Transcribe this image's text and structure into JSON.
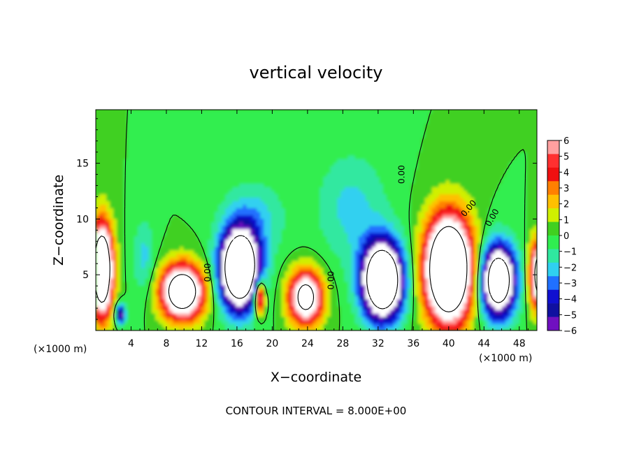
{
  "chart_data": {
    "type": "heatmap",
    "title": "vertical velocity",
    "xlabel": "X−coordinate",
    "ylabel": "Z−coordinate",
    "x_unit": "(×1000 m)",
    "x_unit_right": "(×1000 m)",
    "footer": "CONTOUR INTERVAL = 8.000E+00",
    "xlim": [
      0,
      50
    ],
    "ylim": [
      0,
      19.8
    ],
    "x_ticks": [
      4,
      8,
      12,
      16,
      20,
      24,
      28,
      32,
      36,
      40,
      44,
      48
    ],
    "y_ticks": [
      5,
      10,
      15
    ],
    "colorbar": {
      "range": [
        -6,
        6
      ],
      "ticks": [
        "6",
        "5",
        "4",
        "3",
        "2",
        "1",
        "0",
        "−1",
        "−2",
        "−3",
        "−4",
        "−5",
        "−6"
      ],
      "colors": [
        "#ffa0a0",
        "#ff3030",
        "#f01010",
        "#ff8000",
        "#ffc000",
        "#d0f000",
        "#40d020",
        "#30ee50",
        "#30e8a0",
        "#30d0f0",
        "#2070ff",
        "#1010d0",
        "#1010a0",
        "#7010c0"
      ]
    },
    "contour_labels": [
      "0.00",
      "0.00",
      "0.00",
      "0.00",
      "0.00"
    ],
    "background_value": 0,
    "features": [
      {
        "name": "updraft",
        "x": 0.7,
        "z": 5.5,
        "sx": 1.2,
        "sz": 4.0,
        "value": 14
      },
      {
        "name": "downdraft",
        "x": 2.8,
        "z": 1.5,
        "sx": 0.6,
        "sz": 0.9,
        "value": -6
      },
      {
        "name": "weak downdraft",
        "x": 5.5,
        "z": 6.5,
        "sx": 1.3,
        "sz": 3.5,
        "value": -2
      },
      {
        "name": "updraft",
        "x": 9.8,
        "z": 3.5,
        "sx": 2.4,
        "sz": 2.4,
        "value": 12
      },
      {
        "name": "downdraft",
        "x": 16.3,
        "z": 5.5,
        "sx": 2.2,
        "sz": 3.5,
        "value": -14
      },
      {
        "name": "updraft",
        "x": 18.6,
        "z": 3.0,
        "sx": 0.6,
        "sz": 1.5,
        "value": 8
      },
      {
        "name": "weak downdraft",
        "x": 18.0,
        "z": 10.0,
        "sx": 3.5,
        "sz": 3.5,
        "value": -2
      },
      {
        "name": "updraft",
        "x": 23.8,
        "z": 3.0,
        "sx": 1.9,
        "sz": 2.4,
        "value": 10
      },
      {
        "name": "weak downdraft",
        "x": 29.0,
        "z": 11.0,
        "sx": 4.0,
        "sz": 5.0,
        "value": -2
      },
      {
        "name": "downdraft",
        "x": 32.5,
        "z": 4.5,
        "sx": 2.3,
        "sz": 3.4,
        "value": -14
      },
      {
        "name": "updraft",
        "x": 40.0,
        "z": 5.5,
        "sx": 2.6,
        "sz": 4.6,
        "value": 16
      },
      {
        "name": "downdraft",
        "x": 45.6,
        "z": 4.5,
        "sx": 2.0,
        "sz": 3.2,
        "value": -12
      },
      {
        "name": "updraft",
        "x": 50.5,
        "z": 5.0,
        "sx": 1.2,
        "sz": 3.0,
        "value": 12
      }
    ]
  }
}
